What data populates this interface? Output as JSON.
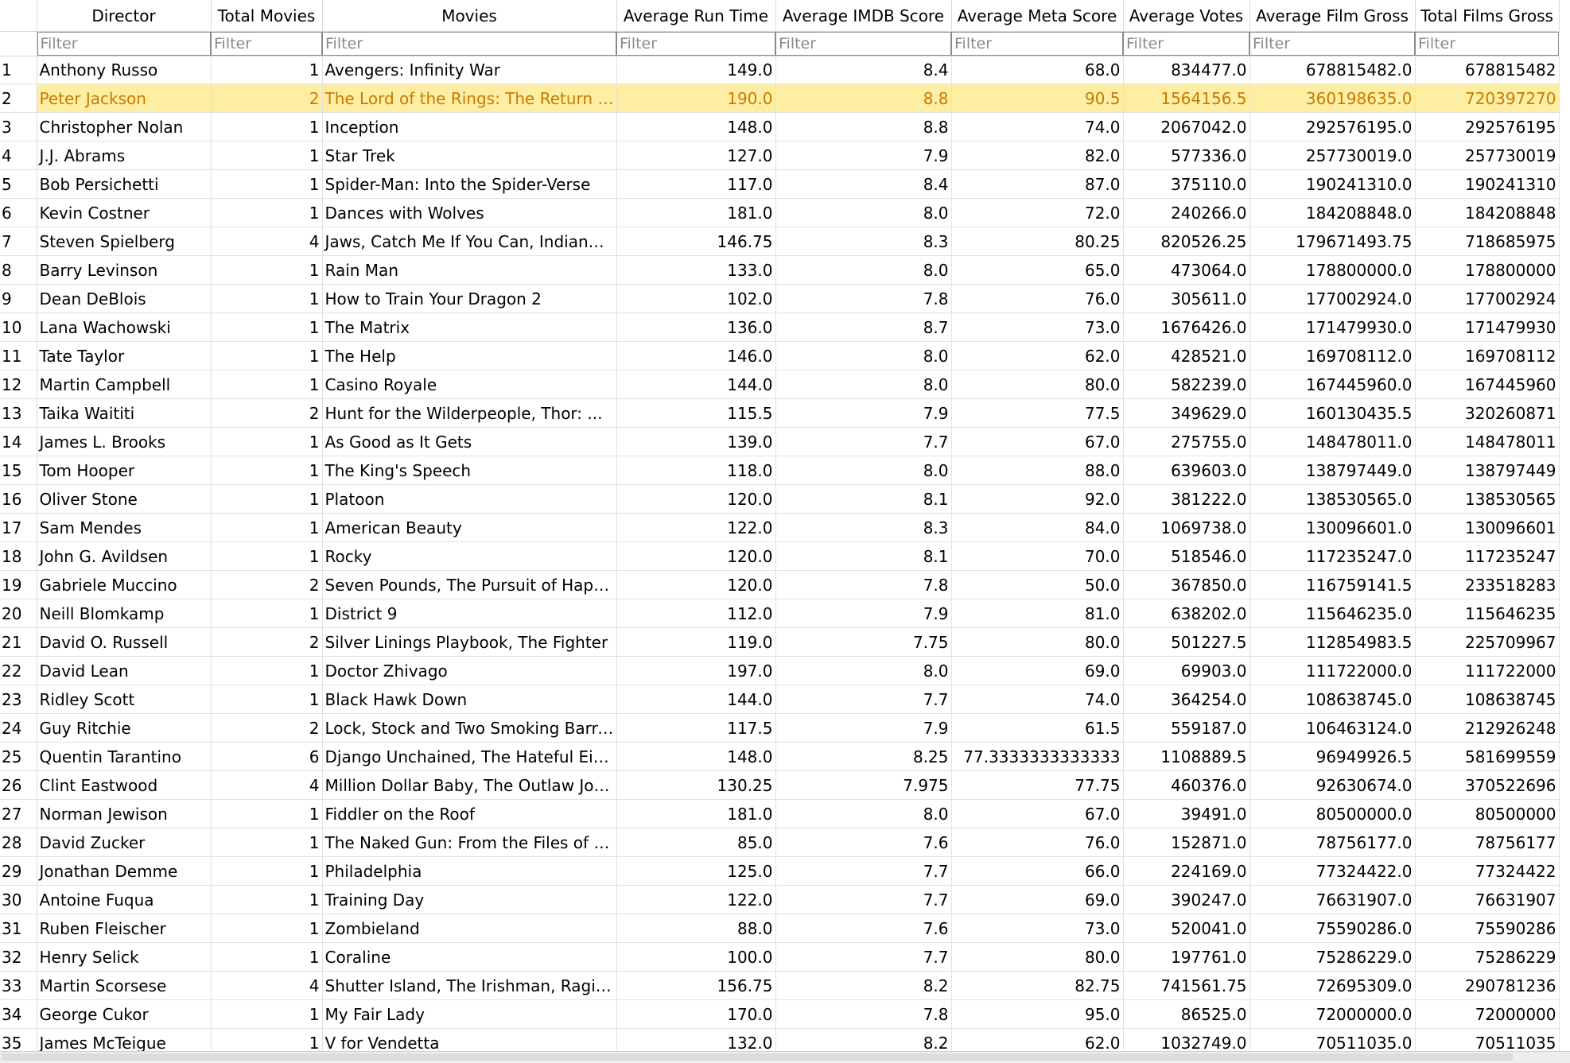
{
  "columns": [
    "Director",
    "Total Movies",
    "Movies",
    "Average Run Time",
    "Average IMDB Score",
    "Average Meta Score",
    "Average Votes",
    "Average Film Gross",
    "Total Films Gross"
  ],
  "filter_placeholder": "Filter",
  "selected_row": 2,
  "rows": [
    {
      "n": "1",
      "director": "Anthony Russo",
      "total": "1",
      "movies": "Avengers: Infinity War",
      "runtime": "149.0",
      "imdb": "8.4",
      "meta": "68.0",
      "votes": "834477.0",
      "avg_gross": "678815482.0",
      "total_gross": "678815482"
    },
    {
      "n": "2",
      "director": "Peter Jackson",
      "total": "2",
      "movies": "The Lord of the Rings: The Return of t...",
      "runtime": "190.0",
      "imdb": "8.8",
      "meta": "90.5",
      "votes": "1564156.5",
      "avg_gross": "360198635.0",
      "total_gross": "720397270"
    },
    {
      "n": "3",
      "director": "Christopher Nolan",
      "total": "1",
      "movies": "Inception",
      "runtime": "148.0",
      "imdb": "8.8",
      "meta": "74.0",
      "votes": "2067042.0",
      "avg_gross": "292576195.0",
      "total_gross": "292576195"
    },
    {
      "n": "4",
      "director": "J.J. Abrams",
      "total": "1",
      "movies": "Star Trek",
      "runtime": "127.0",
      "imdb": "7.9",
      "meta": "82.0",
      "votes": "577336.0",
      "avg_gross": "257730019.0",
      "total_gross": "257730019"
    },
    {
      "n": "5",
      "director": "Bob Persichetti",
      "total": "1",
      "movies": "Spider-Man: Into the Spider-Verse",
      "runtime": "117.0",
      "imdb": "8.4",
      "meta": "87.0",
      "votes": "375110.0",
      "avg_gross": "190241310.0",
      "total_gross": "190241310"
    },
    {
      "n": "6",
      "director": "Kevin Costner",
      "total": "1",
      "movies": "Dances with Wolves",
      "runtime": "181.0",
      "imdb": "8.0",
      "meta": "72.0",
      "votes": "240266.0",
      "avg_gross": "184208848.0",
      "total_gross": "184208848"
    },
    {
      "n": "7",
      "director": "Steven Spielberg",
      "total": "4",
      "movies": "Jaws, Catch Me If You Can, Indiana ...",
      "runtime": "146.75",
      "imdb": "8.3",
      "meta": "80.25",
      "votes": "820526.25",
      "avg_gross": "179671493.75",
      "total_gross": "718685975"
    },
    {
      "n": "8",
      "director": "Barry Levinson",
      "total": "1",
      "movies": "Rain Man",
      "runtime": "133.0",
      "imdb": "8.0",
      "meta": "65.0",
      "votes": "473064.0",
      "avg_gross": "178800000.0",
      "total_gross": "178800000"
    },
    {
      "n": "9",
      "director": "Dean DeBlois",
      "total": "1",
      "movies": "How to Train Your Dragon 2",
      "runtime": "102.0",
      "imdb": "7.8",
      "meta": "76.0",
      "votes": "305611.0",
      "avg_gross": "177002924.0",
      "total_gross": "177002924"
    },
    {
      "n": "10",
      "director": "Lana Wachowski",
      "total": "1",
      "movies": "The Matrix",
      "runtime": "136.0",
      "imdb": "8.7",
      "meta": "73.0",
      "votes": "1676426.0",
      "avg_gross": "171479930.0",
      "total_gross": "171479930"
    },
    {
      "n": "11",
      "director": "Tate Taylor",
      "total": "1",
      "movies": "The Help",
      "runtime": "146.0",
      "imdb": "8.0",
      "meta": "62.0",
      "votes": "428521.0",
      "avg_gross": "169708112.0",
      "total_gross": "169708112"
    },
    {
      "n": "12",
      "director": "Martin Campbell",
      "total": "1",
      "movies": "Casino Royale",
      "runtime": "144.0",
      "imdb": "8.0",
      "meta": "80.0",
      "votes": "582239.0",
      "avg_gross": "167445960.0",
      "total_gross": "167445960"
    },
    {
      "n": "13",
      "director": "Taika Waititi",
      "total": "2",
      "movies": "Hunt for the Wilderpeople, Thor: ...",
      "runtime": "115.5",
      "imdb": "7.9",
      "meta": "77.5",
      "votes": "349629.0",
      "avg_gross": "160130435.5",
      "total_gross": "320260871"
    },
    {
      "n": "14",
      "director": "James L. Brooks",
      "total": "1",
      "movies": "As Good as It Gets",
      "runtime": "139.0",
      "imdb": "7.7",
      "meta": "67.0",
      "votes": "275755.0",
      "avg_gross": "148478011.0",
      "total_gross": "148478011"
    },
    {
      "n": "15",
      "director": "Tom Hooper",
      "total": "1",
      "movies": "The King's Speech",
      "runtime": "118.0",
      "imdb": "8.0",
      "meta": "88.0",
      "votes": "639603.0",
      "avg_gross": "138797449.0",
      "total_gross": "138797449"
    },
    {
      "n": "16",
      "director": "Oliver Stone",
      "total": "1",
      "movies": "Platoon",
      "runtime": "120.0",
      "imdb": "8.1",
      "meta": "92.0",
      "votes": "381222.0",
      "avg_gross": "138530565.0",
      "total_gross": "138530565"
    },
    {
      "n": "17",
      "director": "Sam Mendes",
      "total": "1",
      "movies": "American Beauty",
      "runtime": "122.0",
      "imdb": "8.3",
      "meta": "84.0",
      "votes": "1069738.0",
      "avg_gross": "130096601.0",
      "total_gross": "130096601"
    },
    {
      "n": "18",
      "director": "John G. Avildsen",
      "total": "1",
      "movies": "Rocky",
      "runtime": "120.0",
      "imdb": "8.1",
      "meta": "70.0",
      "votes": "518546.0",
      "avg_gross": "117235247.0",
      "total_gross": "117235247"
    },
    {
      "n": "19",
      "director": "Gabriele Muccino",
      "total": "2",
      "movies": "Seven Pounds, The Pursuit of Happyness",
      "runtime": "120.0",
      "imdb": "7.8",
      "meta": "50.0",
      "votes": "367850.0",
      "avg_gross": "116759141.5",
      "total_gross": "233518283"
    },
    {
      "n": "20",
      "director": "Neill Blomkamp",
      "total": "1",
      "movies": "District 9",
      "runtime": "112.0",
      "imdb": "7.9",
      "meta": "81.0",
      "votes": "638202.0",
      "avg_gross": "115646235.0",
      "total_gross": "115646235"
    },
    {
      "n": "21",
      "director": "David O. Russell",
      "total": "2",
      "movies": "Silver Linings Playbook, The Fighter",
      "runtime": "119.0",
      "imdb": "7.75",
      "meta": "80.0",
      "votes": "501227.5",
      "avg_gross": "112854983.5",
      "total_gross": "225709967"
    },
    {
      "n": "22",
      "director": "David Lean",
      "total": "1",
      "movies": "Doctor Zhivago",
      "runtime": "197.0",
      "imdb": "8.0",
      "meta": "69.0",
      "votes": "69903.0",
      "avg_gross": "111722000.0",
      "total_gross": "111722000"
    },
    {
      "n": "23",
      "director": "Ridley Scott",
      "total": "1",
      "movies": "Black Hawk Down",
      "runtime": "144.0",
      "imdb": "7.7",
      "meta": "74.0",
      "votes": "364254.0",
      "avg_gross": "108638745.0",
      "total_gross": "108638745"
    },
    {
      "n": "24",
      "director": "Guy Ritchie",
      "total": "2",
      "movies": "Lock, Stock and Two Smoking Barrels, ...",
      "runtime": "117.5",
      "imdb": "7.9",
      "meta": "61.5",
      "votes": "559187.0",
      "avg_gross": "106463124.0",
      "total_gross": "212926248"
    },
    {
      "n": "25",
      "director": "Quentin Tarantino",
      "total": "6",
      "movies": "Django Unchained, The Hateful Eight, ...",
      "runtime": "148.0",
      "imdb": "8.25",
      "meta": "77.3333333333333",
      "votes": "1108889.5",
      "avg_gross": "96949926.5",
      "total_gross": "581699559"
    },
    {
      "n": "26",
      "director": "Clint Eastwood",
      "total": "4",
      "movies": "Million Dollar Baby, The Outlaw Josey ...",
      "runtime": "130.25",
      "imdb": "7.975",
      "meta": "77.75",
      "votes": "460376.0",
      "avg_gross": "92630674.0",
      "total_gross": "370522696"
    },
    {
      "n": "27",
      "director": "Norman Jewison",
      "total": "1",
      "movies": "Fiddler on the Roof",
      "runtime": "181.0",
      "imdb": "8.0",
      "meta": "67.0",
      "votes": "39491.0",
      "avg_gross": "80500000.0",
      "total_gross": "80500000"
    },
    {
      "n": "28",
      "director": "David Zucker",
      "total": "1",
      "movies": "The Naked Gun: From the Files of Polic...",
      "runtime": "85.0",
      "imdb": "7.6",
      "meta": "76.0",
      "votes": "152871.0",
      "avg_gross": "78756177.0",
      "total_gross": "78756177"
    },
    {
      "n": "29",
      "director": "Jonathan Demme",
      "total": "1",
      "movies": "Philadelphia",
      "runtime": "125.0",
      "imdb": "7.7",
      "meta": "66.0",
      "votes": "224169.0",
      "avg_gross": "77324422.0",
      "total_gross": "77324422"
    },
    {
      "n": "30",
      "director": "Antoine Fuqua",
      "total": "1",
      "movies": "Training Day",
      "runtime": "122.0",
      "imdb": "7.7",
      "meta": "69.0",
      "votes": "390247.0",
      "avg_gross": "76631907.0",
      "total_gross": "76631907"
    },
    {
      "n": "31",
      "director": "Ruben Fleischer",
      "total": "1",
      "movies": "Zombieland",
      "runtime": "88.0",
      "imdb": "7.6",
      "meta": "73.0",
      "votes": "520041.0",
      "avg_gross": "75590286.0",
      "total_gross": "75590286"
    },
    {
      "n": "32",
      "director": "Henry Selick",
      "total": "1",
      "movies": "Coraline",
      "runtime": "100.0",
      "imdb": "7.7",
      "meta": "80.0",
      "votes": "197761.0",
      "avg_gross": "75286229.0",
      "total_gross": "75286229"
    },
    {
      "n": "33",
      "director": "Martin Scorsese",
      "total": "4",
      "movies": "Shutter Island, The Irishman, Raging ...",
      "runtime": "156.75",
      "imdb": "8.2",
      "meta": "82.75",
      "votes": "741561.75",
      "avg_gross": "72695309.0",
      "total_gross": "290781236"
    },
    {
      "n": "34",
      "director": "George Cukor",
      "total": "1",
      "movies": "My Fair Lady",
      "runtime": "170.0",
      "imdb": "7.8",
      "meta": "95.0",
      "votes": "86525.0",
      "avg_gross": "72000000.0",
      "total_gross": "72000000"
    },
    {
      "n": "35",
      "director": "James McTeigue",
      "total": "1",
      "movies": "V for Vendetta",
      "runtime": "132.0",
      "imdb": "8.2",
      "meta": "62.0",
      "votes": "1032749.0",
      "avg_gross": "70511035.0",
      "total_gross": "70511035"
    }
  ]
}
